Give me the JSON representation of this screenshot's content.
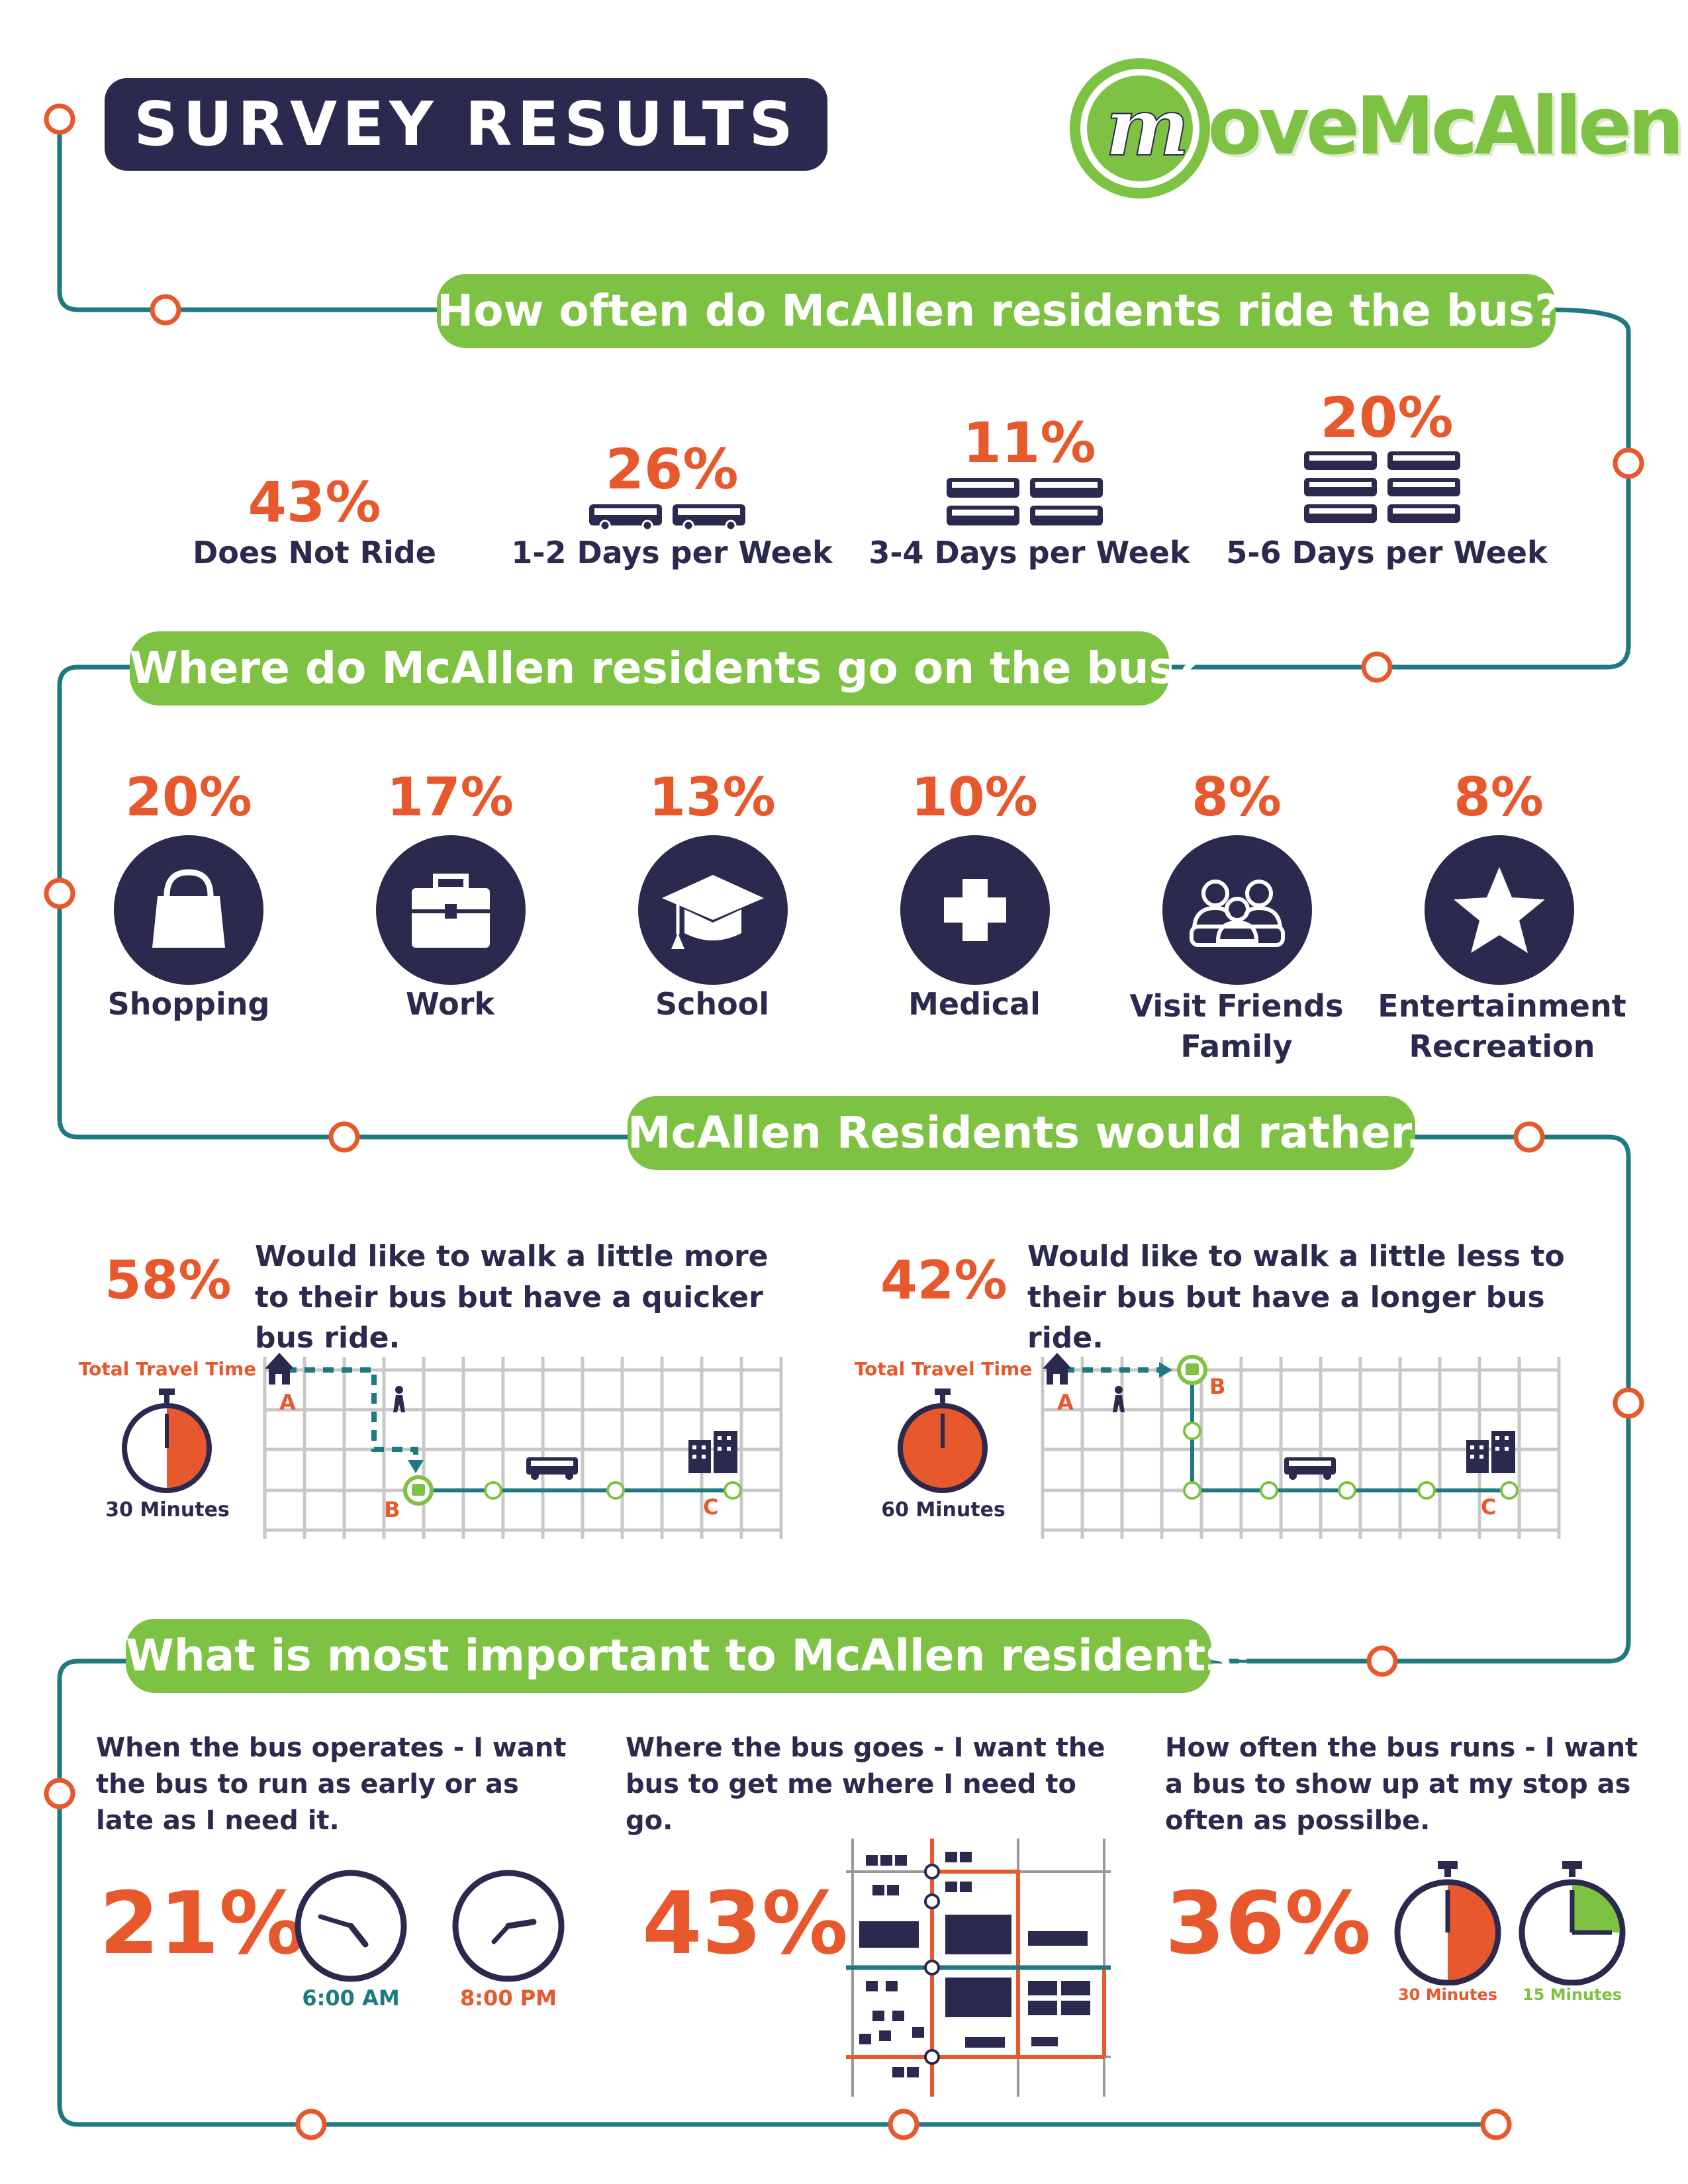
{
  "header": {
    "title": "SURVEY RESULTS",
    "logo": {
      "m_letter": "m",
      "text": "oveMcAllen"
    }
  },
  "section1": {
    "question": "How often do McAllen residents ride the bus?",
    "items": [
      {
        "percent": "43%",
        "label": "Does Not Ride",
        "value": 43,
        "bus_count": 0
      },
      {
        "percent": "26%",
        "label": "1-2 Days per Week",
        "value": 26,
        "bus_count": 2
      },
      {
        "percent": "11%",
        "label": "3-4 Days per Week",
        "value": 11,
        "bus_count": 4
      },
      {
        "percent": "20%",
        "label": "5-6 Days per Week",
        "value": 20,
        "bus_count": 6
      }
    ]
  },
  "section2": {
    "question": "Where do McAllen residents go on the bus?",
    "items": [
      {
        "percent": "20%",
        "label": "Shopping",
        "icon": "shopping-bag-icon"
      },
      {
        "percent": "17%",
        "label": "Work",
        "icon": "briefcase-icon"
      },
      {
        "percent": "13%",
        "label": "School",
        "icon": "graduation-cap-icon"
      },
      {
        "percent": "10%",
        "label": "Medical",
        "icon": "medical-cross-icon"
      },
      {
        "percent": "8%",
        "label": "Visit Friends\nFamily",
        "icon": "people-icon"
      },
      {
        "percent": "8%",
        "label": "Entertainment\nRecreation",
        "icon": "star-icon"
      }
    ]
  },
  "section3": {
    "question": "McAllen Residents would rather...",
    "left": {
      "percent": "58%",
      "text": "Would like to walk a little more to their bus but have a quicker bus ride.",
      "travel_label": "Total Travel Time",
      "minutes_label": "30 Minutes",
      "timer_fraction": 0.5,
      "point_a": "A",
      "point_b": "B",
      "point_c": "C"
    },
    "right": {
      "percent": "42%",
      "text": "Would like to walk a little less to their bus but have a longer bus ride.",
      "travel_label": "Total Travel Time",
      "minutes_label": "60 Minutes",
      "timer_fraction": 1.0,
      "point_a": "A",
      "point_b": "B",
      "point_c": "C"
    }
  },
  "section4": {
    "question": "What is most important to McAllen residents?",
    "col1": {
      "text": "When the bus operates - I want the bus to run as early or as late as I need it.",
      "percent": "21%",
      "clock1": "6:00 AM",
      "clock2": "8:00 PM"
    },
    "col2": {
      "text": "Where the bus goes - I want the bus to get me where I need to go.",
      "percent": "43%"
    },
    "col3": {
      "text": "How often the bus runs - I want a bus to show up at my stop as often as possilbe.",
      "percent": "36%",
      "timer1": "30 Minutes",
      "timer2": "15 Minutes",
      "timer1_fraction": 0.5,
      "timer2_fraction": 0.25
    }
  },
  "colors": {
    "navy": "#2b2a4e",
    "orange": "#e8582d",
    "green": "#7dc242",
    "teal": "#1e7a80",
    "grid": "#c8c8c8"
  }
}
